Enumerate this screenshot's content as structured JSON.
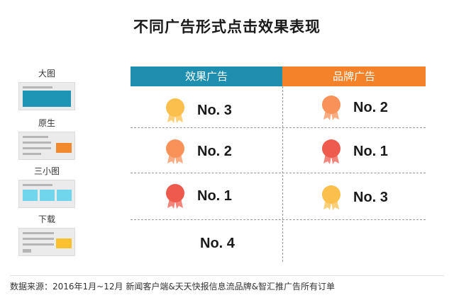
{
  "title": "不同广告形式点击效果表现",
  "formats": [
    {
      "label": "大图"
    },
    {
      "label": "原生"
    },
    {
      "label": "三小图"
    },
    {
      "label": "下载"
    }
  ],
  "columns": [
    {
      "label": "效果广告",
      "color": "#1f8fb0"
    },
    {
      "label": "品牌广告",
      "color": "#f4822a"
    }
  ],
  "chart_data": {
    "type": "table",
    "rows": [
      "大图",
      "原生",
      "三小图",
      "下载"
    ],
    "columns": [
      "效果广告",
      "品牌广告"
    ],
    "cells": [
      [
        "No. 3",
        "No. 2"
      ],
      [
        "No. 2",
        "No. 1"
      ],
      [
        "No. 1",
        "No. 3"
      ],
      [
        "No. 4",
        ""
      ]
    ],
    "medal_colors": {
      "No. 1": "#ee5b4e",
      "No. 2": "#f89259",
      "No. 3": "#fbbf4c"
    }
  },
  "footer": {
    "source": "数据来源：2016年1月~12月 新闻客户端&天天快报信息流品牌&智汇推广告所有订单"
  }
}
